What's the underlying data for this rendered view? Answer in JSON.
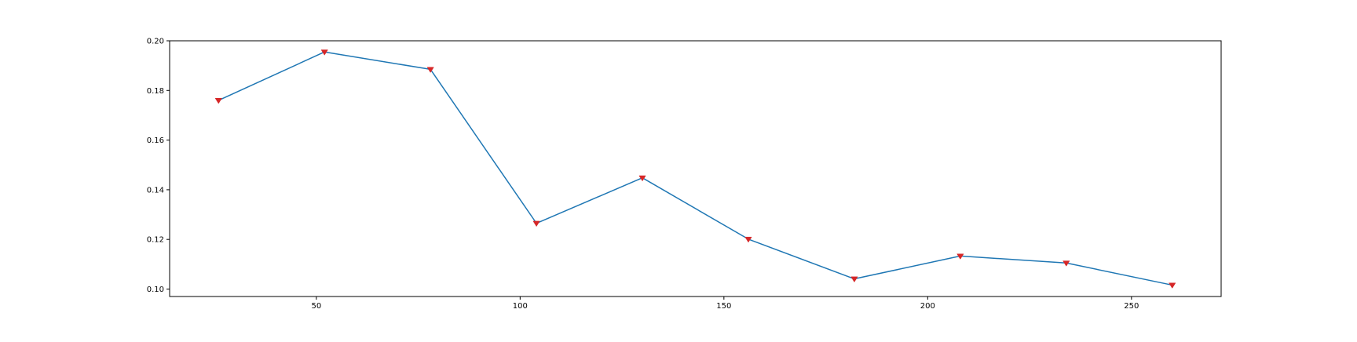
{
  "chart_data": {
    "type": "line",
    "title": "",
    "xlabel": "",
    "ylabel": "",
    "xlim": [
      14,
      272
    ],
    "ylim": [
      0.097,
      0.2
    ],
    "xticks": [
      50,
      100,
      150,
      200,
      250
    ],
    "yticks": [
      0.1,
      0.12,
      0.14,
      0.16,
      0.18,
      0.2
    ],
    "xtick_labels": [
      "50",
      "100",
      "150",
      "200",
      "250"
    ],
    "ytick_labels": [
      "0.10",
      "0.12",
      "0.14",
      "0.16",
      "0.18",
      "0.20"
    ],
    "grid": false,
    "legend": "none",
    "series": [
      {
        "x": [
          26,
          52,
          78,
          104,
          130,
          156,
          182,
          208,
          234,
          260
        ],
        "y": [
          0.176,
          0.1955,
          0.1885,
          0.1265,
          0.1448,
          0.1201,
          0.1041,
          0.1133,
          0.1105,
          0.1016
        ],
        "line_color": "#1f77b4",
        "marker": "triangle-down",
        "marker_color": "#d62728"
      }
    ]
  }
}
